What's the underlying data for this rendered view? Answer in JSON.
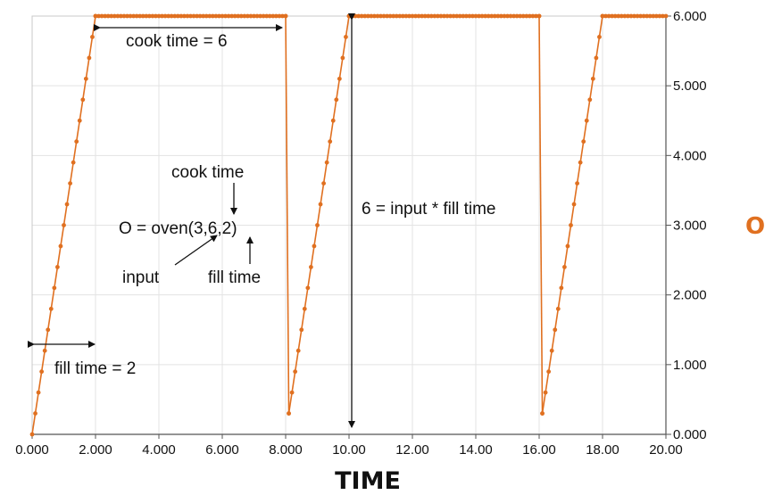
{
  "chart_data": {
    "type": "line",
    "title": "",
    "xlabel": "TIME",
    "ylabel": "O",
    "xlim": [
      0,
      20
    ],
    "ylim": [
      0,
      6
    ],
    "x_ticks": [
      "0.000",
      "2.000",
      "4.000",
      "6.000",
      "8.000",
      "10.00",
      "12.00",
      "14.00",
      "16.00",
      "18.00",
      "20.00"
    ],
    "y_ticks": [
      "0.000",
      "1.000",
      "2.000",
      "3.000",
      "4.000",
      "5.000",
      "6.000"
    ],
    "y_axis_side": "right",
    "grid": true,
    "series_color": "#E07020",
    "series": [
      {
        "segments": [
          {
            "x": [
              0,
              2
            ],
            "y": [
              0,
              6
            ]
          },
          {
            "x": [
              2,
              8
            ],
            "y": [
              6,
              6
            ]
          },
          {
            "x": [
              8,
              8.1
            ],
            "y": [
              6,
              0.3
            ]
          },
          {
            "x": [
              8.1,
              10
            ],
            "y": [
              0.3,
              6
            ]
          },
          {
            "x": [
              10,
              16
            ],
            "y": [
              6,
              6
            ]
          },
          {
            "x": [
              16,
              16.1
            ],
            "y": [
              6,
              0.3
            ]
          },
          {
            "x": [
              16.1,
              18
            ],
            "y": [
              0.3,
              6
            ]
          },
          {
            "x": [
              18,
              20
            ],
            "y": [
              6,
              6
            ]
          }
        ],
        "marker_step": 0.1
      }
    ],
    "annotations": {
      "cook_time_span": "cook time = 6",
      "fill_time_span": "fill time = 2",
      "height_label": "6 = input * fill time",
      "formula": "O = oven(3,6,2)",
      "cook_time_label": "cook time",
      "input_label": "input",
      "fill_time_label": "fill time"
    }
  }
}
